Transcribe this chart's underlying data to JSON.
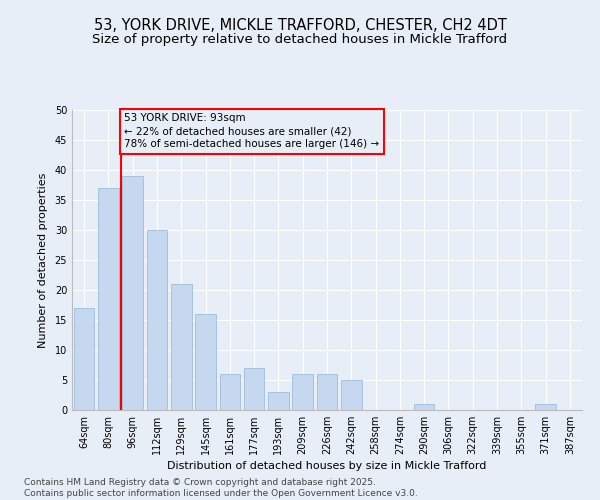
{
  "title1": "53, YORK DRIVE, MICKLE TRAFFORD, CHESTER, CH2 4DT",
  "title2": "Size of property relative to detached houses in Mickle Trafford",
  "xlabel": "Distribution of detached houses by size in Mickle Trafford",
  "ylabel": "Number of detached properties",
  "categories": [
    "64sqm",
    "80sqm",
    "96sqm",
    "112sqm",
    "129sqm",
    "145sqm",
    "161sqm",
    "177sqm",
    "193sqm",
    "209sqm",
    "226sqm",
    "242sqm",
    "258sqm",
    "274sqm",
    "290sqm",
    "306sqm",
    "322sqm",
    "339sqm",
    "355sqm",
    "371sqm",
    "387sqm"
  ],
  "values": [
    17,
    37,
    39,
    30,
    21,
    16,
    6,
    7,
    3,
    6,
    6,
    5,
    0,
    0,
    1,
    0,
    0,
    0,
    0,
    1,
    0
  ],
  "bar_color": "#c5d8f0",
  "bar_edge_color": "#a0bcd8",
  "subject_label": "53 YORK DRIVE: 93sqm",
  "annotation_line1": "← 22% of detached houses are smaller (42)",
  "annotation_line2": "78% of semi-detached houses are larger (146) →",
  "ylim": [
    0,
    50
  ],
  "yticks": [
    0,
    5,
    10,
    15,
    20,
    25,
    30,
    35,
    40,
    45,
    50
  ],
  "background_color": "#e8eef7",
  "grid_color": "#ffffff",
  "footer1": "Contains HM Land Registry data © Crown copyright and database right 2025.",
  "footer2": "Contains public sector information licensed under the Open Government Licence v3.0.",
  "title_fontsize": 10.5,
  "subtitle_fontsize": 9.5,
  "tick_fontsize": 7,
  "axis_label_fontsize": 8,
  "footer_fontsize": 6.5
}
